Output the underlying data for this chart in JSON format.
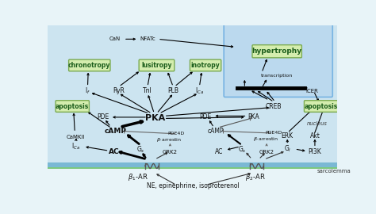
{
  "bg_color": "#cce4f0",
  "sarcolemma_band_color": "#7ab8d4",
  "sarcolemma_top_color": "#7dc87d",
  "extracell_color": "#e8f4f8",
  "nucleus_bg": "#b8d8ee",
  "nucleus_edge": "#6aace0",
  "green_fill": "#d4edae",
  "green_edge": "#7aaa50",
  "title": "NE, epinephrine, isoproterenol",
  "sarcolemma_label": "sarcolemma",
  "nucleus_label": "nucleus"
}
